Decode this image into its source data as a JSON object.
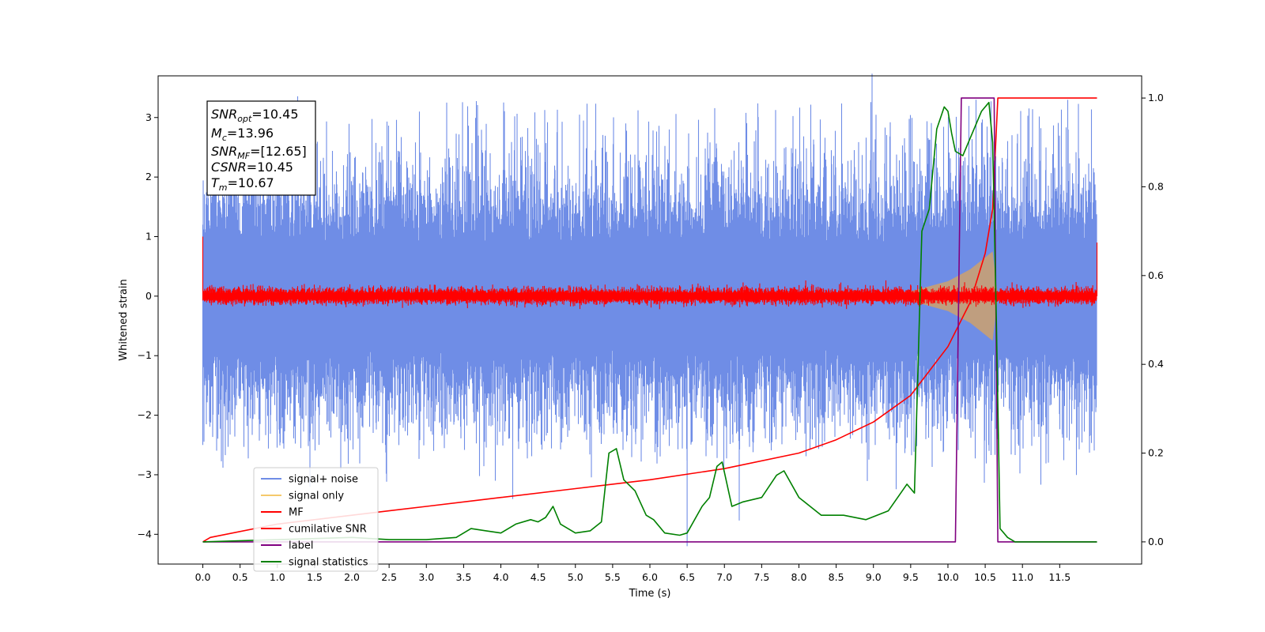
{
  "chart_data": {
    "type": "line",
    "xlabel": "Time (s)",
    "ylabel": "Whitened strain",
    "xlim": [
      -0.6,
      12.6
    ],
    "x_ticks": [
      "0.0",
      "0.5",
      "1.0",
      "1.5",
      "2.0",
      "2.5",
      "3.0",
      "3.5",
      "4.0",
      "4.5",
      "5.0",
      "5.5",
      "6.0",
      "6.5",
      "7.0",
      "7.5",
      "8.0",
      "8.5",
      "9.0",
      "9.5",
      "10.0",
      "10.5",
      "11.0",
      "11.5"
    ],
    "ylim_left": [
      -4.5,
      3.7
    ],
    "y_ticks_left": [
      "3",
      "2",
      "1",
      "0",
      "−1",
      "−2",
      "−3",
      "−4"
    ],
    "ylim_right": [
      -0.05,
      1.05
    ],
    "y_ticks_right": [
      "1.0",
      "0.8",
      "0.6",
      "0.4",
      "0.2",
      "0.0"
    ],
    "legend_position": "lower left",
    "annotation": {
      "snr_opt": {
        "base": "SNR",
        "sub": "opt",
        "value": "=10.45"
      },
      "mc": {
        "base": "M",
        "sub": "c",
        "value": "=13.96"
      },
      "snr_mf": {
        "base": "SNR",
        "sub": "MF",
        "value": "=[12.65]"
      },
      "csnr": {
        "base": "CSNR",
        "sub": "",
        "value": "=10.45"
      },
      "tm": {
        "base": "T",
        "sub": "m",
        "value": "=10.67"
      }
    },
    "series": [
      {
        "name": "signal+ noise",
        "axis": "left",
        "color": "#6f8de6",
        "description_values": {
          "x_range": [
            0.0,
            12.0
          ],
          "envelope_approx": [
            -2.5,
            3.3
          ]
        }
      },
      {
        "name": "signal only",
        "axis": "left",
        "color": "#f5c96b",
        "x": [
          9.0,
          9.5,
          10.0,
          10.3,
          10.5,
          10.6,
          10.67
        ],
        "amplitude": [
          0.02,
          0.08,
          0.25,
          0.45,
          0.65,
          0.75,
          0.0
        ]
      },
      {
        "name": "MF",
        "axis": "left",
        "color": "#ff0000",
        "description_values": {
          "x_range": [
            0.0,
            12.0
          ],
          "band_approx": [
            -0.1,
            0.15
          ]
        }
      },
      {
        "name": "cumilative SNR",
        "axis": "right",
        "color": "#ff0000",
        "x": [
          0.0,
          0.1,
          1.0,
          2.0,
          3.0,
          4.0,
          5.0,
          6.0,
          7.0,
          8.0,
          8.5,
          9.0,
          9.5,
          10.0,
          10.3,
          10.5,
          10.6,
          10.67,
          12.0
        ],
        "y": [
          0.0,
          0.01,
          0.04,
          0.06,
          0.08,
          0.1,
          0.12,
          0.14,
          0.165,
          0.2,
          0.23,
          0.27,
          0.33,
          0.44,
          0.54,
          0.65,
          0.75,
          1.0,
          1.0
        ]
      },
      {
        "name": "label",
        "axis": "right",
        "color": "#800080",
        "x": [
          0.0,
          10.1,
          10.18,
          10.62,
          10.67,
          12.0
        ],
        "y": [
          0.0,
          0.0,
          1.0,
          1.0,
          0.0,
          0.0
        ]
      },
      {
        "name": "signal statistics",
        "axis": "right",
        "color": "#008000",
        "x": [
          0.0,
          1.0,
          2.0,
          2.5,
          3.0,
          3.4,
          3.6,
          3.8,
          4.0,
          4.2,
          4.4,
          4.5,
          4.6,
          4.7,
          4.8,
          5.0,
          5.2,
          5.35,
          5.45,
          5.55,
          5.65,
          5.8,
          5.95,
          6.05,
          6.2,
          6.4,
          6.5,
          6.7,
          6.8,
          6.9,
          6.97,
          7.1,
          7.25,
          7.5,
          7.7,
          7.8,
          8.0,
          8.3,
          8.6,
          8.9,
          9.2,
          9.45,
          9.55,
          9.65,
          9.75,
          9.85,
          9.95,
          10.0,
          10.05,
          10.1,
          10.2,
          10.3,
          10.45,
          10.55,
          10.6,
          10.65,
          10.7,
          10.8,
          10.9,
          12.0
        ],
        "y": [
          0.0,
          0.005,
          0.01,
          0.005,
          0.005,
          0.01,
          0.03,
          0.025,
          0.02,
          0.04,
          0.05,
          0.045,
          0.055,
          0.08,
          0.04,
          0.02,
          0.025,
          0.045,
          0.2,
          0.21,
          0.14,
          0.115,
          0.06,
          0.05,
          0.02,
          0.015,
          0.02,
          0.08,
          0.1,
          0.17,
          0.18,
          0.08,
          0.09,
          0.1,
          0.15,
          0.16,
          0.1,
          0.06,
          0.06,
          0.05,
          0.07,
          0.13,
          0.11,
          0.7,
          0.75,
          0.93,
          0.98,
          0.97,
          0.92,
          0.88,
          0.87,
          0.91,
          0.97,
          0.99,
          0.9,
          0.5,
          0.03,
          0.01,
          0.0,
          0.0
        ]
      }
    ]
  }
}
